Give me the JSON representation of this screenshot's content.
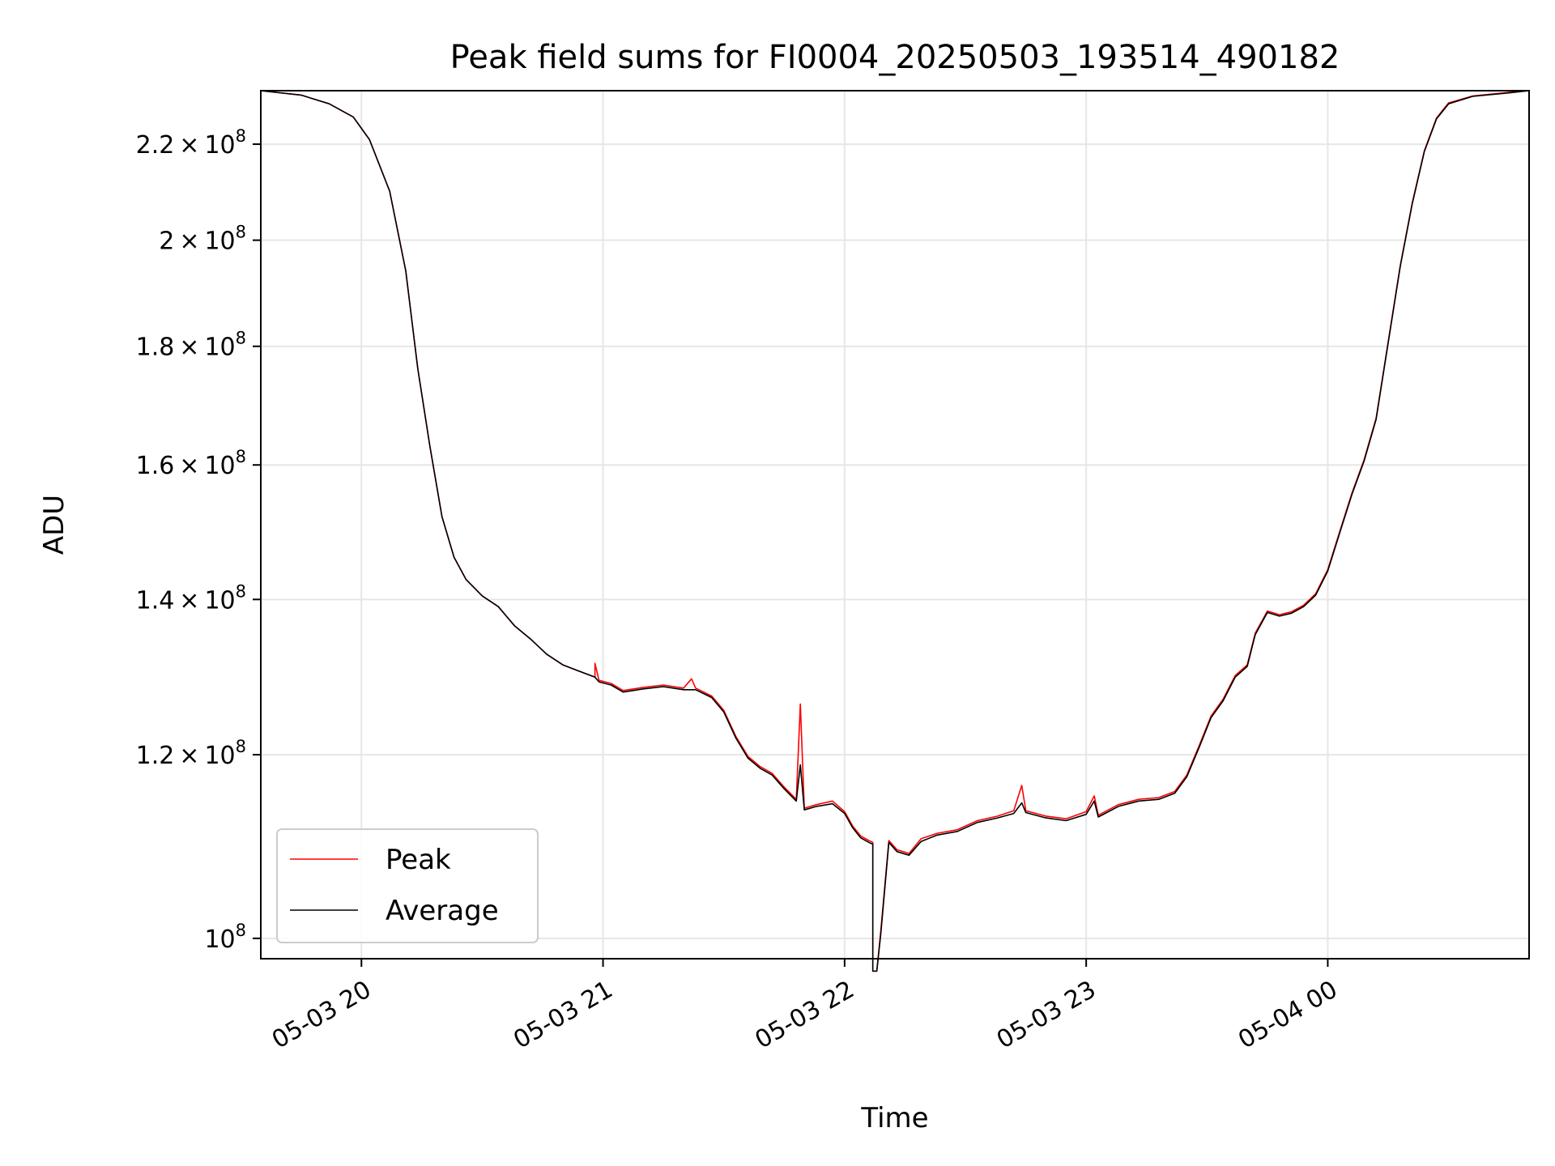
{
  "chart_data": {
    "type": "line",
    "title": "Peak field sums for FI0004_20250503_193514_490182",
    "xlabel": "Time",
    "ylabel": "ADU",
    "y_scale": "log",
    "ylim": [
      98000000,
      232000000
    ],
    "x_range": [
      "2025-05-03 19:35",
      "2025-05-04 00:50"
    ],
    "x_ticks": [
      {
        "t": "2025-05-03 20:00",
        "label": "05-03 20"
      },
      {
        "t": "2025-05-03 21:00",
        "label": "05-03 21"
      },
      {
        "t": "2025-05-03 22:00",
        "label": "05-03 22"
      },
      {
        "t": "2025-05-03 23:00",
        "label": "05-03 23"
      },
      {
        "t": "2025-05-04 00:00",
        "label": "05-04 00"
      }
    ],
    "y_ticks": [
      {
        "v": 100000000,
        "mant": "",
        "exp": "8"
      },
      {
        "v": 120000000,
        "mant": "1.2",
        "exp": "8"
      },
      {
        "v": 140000000,
        "mant": "1.4",
        "exp": "8"
      },
      {
        "v": 160000000,
        "mant": "1.6",
        "exp": "8"
      },
      {
        "v": 180000000,
        "mant": "1.8",
        "exp": "8"
      },
      {
        "v": 200000000,
        "mant": "2",
        "exp": "8"
      },
      {
        "v": 220000000,
        "mant": "2.2",
        "exp": "8"
      }
    ],
    "grid": true,
    "legend_position": "lower-left",
    "series": [
      {
        "name": "Peak",
        "color": "#ff0000",
        "points": [
          [
            "2025-05-03 19:35",
            232000000
          ],
          [
            "2025-05-03 19:45",
            231000000
          ],
          [
            "2025-05-03 19:52",
            229000000
          ],
          [
            "2025-05-03 19:58",
            226000000
          ],
          [
            "2025-05-03 20:02",
            221000000
          ],
          [
            "2025-05-03 20:07",
            210000000
          ],
          [
            "2025-05-03 20:11",
            194000000
          ],
          [
            "2025-05-03 20:14",
            176000000
          ],
          [
            "2025-05-03 20:17",
            163000000
          ],
          [
            "2025-05-03 20:20",
            152000000
          ],
          [
            "2025-05-03 20:23",
            146000000
          ],
          [
            "2025-05-03 20:26",
            142800000
          ],
          [
            "2025-05-03 20:30",
            140500000
          ],
          [
            "2025-05-03 20:34",
            139000000
          ],
          [
            "2025-05-03 20:38",
            136400000
          ],
          [
            "2025-05-03 20:42",
            134600000
          ],
          [
            "2025-05-03 20:46",
            132600000
          ],
          [
            "2025-05-03 20:50",
            131200000
          ],
          [
            "2025-05-03 20:54",
            130400000
          ],
          [
            "2025-05-03 20:58",
            129600000
          ],
          [
            "2025-05-03 20:58",
            131400000
          ],
          [
            "2025-05-03 20:59",
            129200000
          ],
          [
            "2025-05-03 21:02",
            128800000
          ],
          [
            "2025-05-03 21:05",
            127900000
          ],
          [
            "2025-05-03 21:10",
            128300000
          ],
          [
            "2025-05-03 21:15",
            128600000
          ],
          [
            "2025-05-03 21:20",
            128200000
          ],
          [
            "2025-05-03 21:22",
            129400000
          ],
          [
            "2025-05-03 21:23",
            128200000
          ],
          [
            "2025-05-03 21:27",
            127200000
          ],
          [
            "2025-05-03 21:30",
            125400000
          ],
          [
            "2025-05-03 21:33",
            122200000
          ],
          [
            "2025-05-03 21:36",
            119800000
          ],
          [
            "2025-05-03 21:39",
            118600000
          ],
          [
            "2025-05-03 21:42",
            117800000
          ],
          [
            "2025-05-03 21:45",
            116200000
          ],
          [
            "2025-05-03 21:48",
            114800000
          ],
          [
            "2025-05-03 21:49",
            126200000
          ],
          [
            "2025-05-03 21:50",
            113800000
          ],
          [
            "2025-05-03 21:53",
            114200000
          ],
          [
            "2025-05-03 21:57",
            114600000
          ],
          [
            "2025-05-03 22:00",
            113400000
          ],
          [
            "2025-05-03 22:02",
            111800000
          ],
          [
            "2025-05-03 22:04",
            110700000
          ],
          [
            "2025-05-03 22:06",
            110200000
          ],
          [
            "2025-05-03 22:07",
            110000000
          ],
          [
            "2025-05-03 22:07",
            96800000
          ],
          [
            "2025-05-03 22:08",
            96800000
          ],
          [
            "2025-05-03 22:09",
            100800000
          ],
          [
            "2025-05-03 22:11",
            110200000
          ],
          [
            "2025-05-03 22:13",
            109200000
          ],
          [
            "2025-05-03 22:16",
            108800000
          ],
          [
            "2025-05-03 22:19",
            110400000
          ],
          [
            "2025-05-03 22:23",
            111000000
          ],
          [
            "2025-05-03 22:28",
            111400000
          ],
          [
            "2025-05-03 22:33",
            112400000
          ],
          [
            "2025-05-03 22:38",
            112900000
          ],
          [
            "2025-05-03 22:42",
            113500000
          ],
          [
            "2025-05-03 22:44",
            116400000
          ],
          [
            "2025-05-03 22:45",
            113500000
          ],
          [
            "2025-05-03 22:50",
            112900000
          ],
          [
            "2025-05-03 22:55",
            112600000
          ],
          [
            "2025-05-03 23:00",
            113400000
          ],
          [
            "2025-05-03 23:02",
            115200000
          ],
          [
            "2025-05-03 23:03",
            113000000
          ],
          [
            "2025-05-03 23:08",
            114200000
          ],
          [
            "2025-05-03 23:13",
            114800000
          ],
          [
            "2025-05-03 23:18",
            115000000
          ],
          [
            "2025-05-03 23:22",
            115700000
          ],
          [
            "2025-05-03 23:25",
            117600000
          ],
          [
            "2025-05-03 23:28",
            121000000
          ],
          [
            "2025-05-03 23:31",
            124700000
          ],
          [
            "2025-05-03 23:34",
            126800000
          ],
          [
            "2025-05-03 23:37",
            129800000
          ],
          [
            "2025-05-03 23:40",
            131200000
          ],
          [
            "2025-05-03 23:42",
            135400000
          ],
          [
            "2025-05-03 23:45",
            138400000
          ],
          [
            "2025-05-03 23:48",
            137900000
          ],
          [
            "2025-05-03 23:51",
            138300000
          ],
          [
            "2025-05-03 23:54",
            139200000
          ],
          [
            "2025-05-03 23:57",
            140800000
          ],
          [
            "2025-05-04 00:00",
            144200000
          ],
          [
            "2025-05-04 00:03",
            149800000
          ],
          [
            "2025-05-04 00:06",
            155600000
          ],
          [
            "2025-05-04 00:09",
            160800000
          ],
          [
            "2025-05-04 00:12",
            167600000
          ],
          [
            "2025-05-04 00:15",
            180800000
          ],
          [
            "2025-05-04 00:18",
            195000000
          ],
          [
            "2025-05-04 00:21",
            207600000
          ],
          [
            "2025-05-04 00:24",
            218600000
          ],
          [
            "2025-05-04 00:27",
            225800000
          ],
          [
            "2025-05-04 00:30",
            229200000
          ],
          [
            "2025-05-04 00:36",
            230800000
          ],
          [
            "2025-05-04 00:45",
            231600000
          ],
          [
            "2025-05-04 00:50",
            232000000
          ]
        ]
      },
      {
        "name": "Average",
        "color": "#000000",
        "points": [
          [
            "2025-05-03 19:35",
            232000000
          ],
          [
            "2025-05-03 19:45",
            231000000
          ],
          [
            "2025-05-03 19:52",
            229000000
          ],
          [
            "2025-05-03 19:58",
            226000000
          ],
          [
            "2025-05-03 20:02",
            221000000
          ],
          [
            "2025-05-03 20:07",
            210000000
          ],
          [
            "2025-05-03 20:11",
            194000000
          ],
          [
            "2025-05-03 20:14",
            176000000
          ],
          [
            "2025-05-03 20:17",
            163000000
          ],
          [
            "2025-05-03 20:20",
            152000000
          ],
          [
            "2025-05-03 20:23",
            146000000
          ],
          [
            "2025-05-03 20:26",
            142800000
          ],
          [
            "2025-05-03 20:30",
            140500000
          ],
          [
            "2025-05-03 20:34",
            139000000
          ],
          [
            "2025-05-03 20:38",
            136400000
          ],
          [
            "2025-05-03 20:42",
            134600000
          ],
          [
            "2025-05-03 20:46",
            132600000
          ],
          [
            "2025-05-03 20:50",
            131200000
          ],
          [
            "2025-05-03 20:54",
            130400000
          ],
          [
            "2025-05-03 20:58",
            129600000
          ],
          [
            "2025-05-03 20:59",
            129000000
          ],
          [
            "2025-05-03 21:02",
            128600000
          ],
          [
            "2025-05-03 21:05",
            127700000
          ],
          [
            "2025-05-03 21:10",
            128100000
          ],
          [
            "2025-05-03 21:15",
            128400000
          ],
          [
            "2025-05-03 21:20",
            128000000
          ],
          [
            "2025-05-03 21:23",
            128000000
          ],
          [
            "2025-05-03 21:27",
            127000000
          ],
          [
            "2025-05-03 21:30",
            125200000
          ],
          [
            "2025-05-03 21:33",
            122000000
          ],
          [
            "2025-05-03 21:36",
            119600000
          ],
          [
            "2025-05-03 21:39",
            118400000
          ],
          [
            "2025-05-03 21:42",
            117600000
          ],
          [
            "2025-05-03 21:45",
            116000000
          ],
          [
            "2025-05-03 21:48",
            114600000
          ],
          [
            "2025-05-03 21:49",
            118800000
          ],
          [
            "2025-05-03 21:50",
            113600000
          ],
          [
            "2025-05-03 21:53",
            114000000
          ],
          [
            "2025-05-03 21:57",
            114300000
          ],
          [
            "2025-05-03 22:00",
            113200000
          ],
          [
            "2025-05-03 22:02",
            111600000
          ],
          [
            "2025-05-03 22:04",
            110500000
          ],
          [
            "2025-05-03 22:06",
            110000000
          ],
          [
            "2025-05-03 22:07",
            109800000
          ],
          [
            "2025-05-03 22:07",
            96800000
          ],
          [
            "2025-05-03 22:08",
            96800000
          ],
          [
            "2025-05-03 22:09",
            100500000
          ],
          [
            "2025-05-03 22:11",
            110000000
          ],
          [
            "2025-05-03 22:13",
            109000000
          ],
          [
            "2025-05-03 22:16",
            108600000
          ],
          [
            "2025-05-03 22:19",
            110100000
          ],
          [
            "2025-05-03 22:23",
            110800000
          ],
          [
            "2025-05-03 22:28",
            111200000
          ],
          [
            "2025-05-03 22:33",
            112200000
          ],
          [
            "2025-05-03 22:38",
            112700000
          ],
          [
            "2025-05-03 22:42",
            113200000
          ],
          [
            "2025-05-03 22:44",
            114400000
          ],
          [
            "2025-05-03 22:45",
            113300000
          ],
          [
            "2025-05-03 22:50",
            112700000
          ],
          [
            "2025-05-03 22:55",
            112400000
          ],
          [
            "2025-05-03 23:00",
            113100000
          ],
          [
            "2025-05-03 23:02",
            114600000
          ],
          [
            "2025-05-03 23:03",
            112800000
          ],
          [
            "2025-05-03 23:08",
            114000000
          ],
          [
            "2025-05-03 23:13",
            114600000
          ],
          [
            "2025-05-03 23:18",
            114800000
          ],
          [
            "2025-05-03 23:22",
            115500000
          ],
          [
            "2025-05-03 23:25",
            117400000
          ],
          [
            "2025-05-03 23:28",
            120800000
          ],
          [
            "2025-05-03 23:31",
            124500000
          ],
          [
            "2025-05-03 23:34",
            126600000
          ],
          [
            "2025-05-03 23:37",
            129600000
          ],
          [
            "2025-05-03 23:40",
            131000000
          ],
          [
            "2025-05-03 23:42",
            135200000
          ],
          [
            "2025-05-03 23:45",
            138200000
          ],
          [
            "2025-05-03 23:48",
            137700000
          ],
          [
            "2025-05-03 23:51",
            138100000
          ],
          [
            "2025-05-03 23:54",
            139000000
          ],
          [
            "2025-05-03 23:57",
            140600000
          ],
          [
            "2025-05-04 00:00",
            144000000
          ],
          [
            "2025-05-04 00:03",
            149600000
          ],
          [
            "2025-05-04 00:06",
            155400000
          ],
          [
            "2025-05-04 00:09",
            160600000
          ],
          [
            "2025-05-04 00:12",
            167400000
          ],
          [
            "2025-05-04 00:15",
            180600000
          ],
          [
            "2025-05-04 00:18",
            194800000
          ],
          [
            "2025-05-04 00:21",
            207400000
          ],
          [
            "2025-05-04 00:24",
            218400000
          ],
          [
            "2025-05-04 00:27",
            225600000
          ],
          [
            "2025-05-04 00:30",
            229000000
          ],
          [
            "2025-05-04 00:36",
            230700000
          ],
          [
            "2025-05-04 00:45",
            231500000
          ],
          [
            "2025-05-04 00:50",
            232000000
          ]
        ]
      }
    ]
  }
}
